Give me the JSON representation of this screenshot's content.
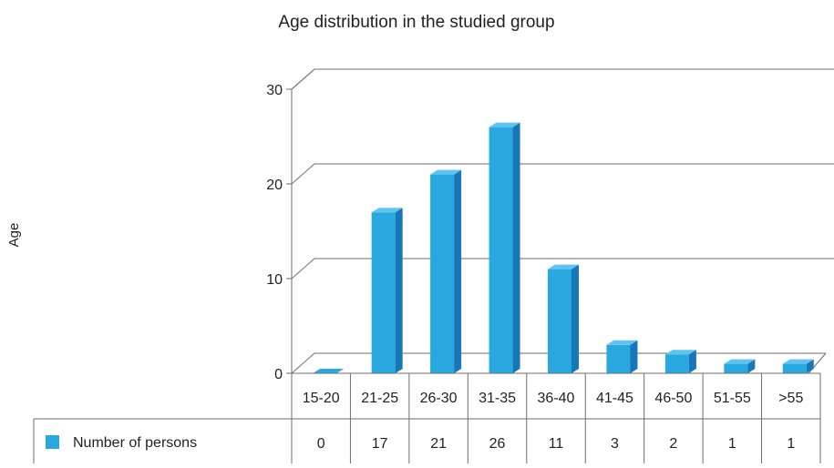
{
  "chart_data": {
    "type": "bar",
    "title": "Age distribution in the studied group",
    "ylabel": "Age",
    "xlabel": "",
    "categories": [
      "15-20",
      "21-25",
      "26-30",
      "31-35",
      "36-40",
      "41-45",
      "46-50",
      "51-55",
      ">55"
    ],
    "series": [
      {
        "name": "Number of persons",
        "values": [
          0,
          17,
          21,
          26,
          11,
          3,
          2,
          1,
          1
        ],
        "color": "#29a8e0"
      }
    ],
    "ylim": [
      0,
      30
    ],
    "yticks": [
      "0",
      "10",
      "20",
      "30"
    ],
    "grid": true,
    "legend": "data-table-left",
    "data_table": true,
    "three_d": true
  }
}
